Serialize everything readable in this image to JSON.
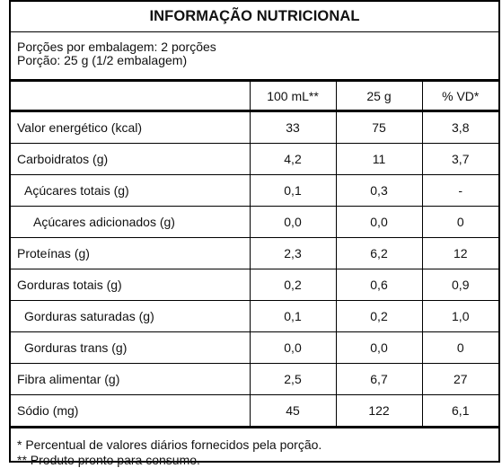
{
  "title": "INFORMAÇÃO NUTRICIONAL",
  "portion": {
    "line1": "Porções por embalagem: 2 porções",
    "line2": "Porção: 25 g (1/2 embalagem)"
  },
  "columns": [
    "",
    "100 mL**",
    "25 g",
    "% VD*"
  ],
  "rows": [
    {
      "label": "Valor energético (kcal)",
      "v100": "33",
      "vportion": "75",
      "vd": "3,8"
    },
    {
      "label": "Carboidratos (g)",
      "v100": "4,2",
      "vportion": "11",
      "vd": "3,7"
    },
    {
      "label": "Açúcares totais (g)",
      "v100": "0,1",
      "vportion": "0,3",
      "vd": "-"
    },
    {
      "label": "Açúcares adicionados (g)",
      "v100": "0,0",
      "vportion": "0,0",
      "vd": "0"
    },
    {
      "label": "Proteínas (g)",
      "v100": "2,3",
      "vportion": "6,2",
      "vd": "12"
    },
    {
      "label": "Gorduras totais (g)",
      "v100": "0,2",
      "vportion": "0,6",
      "vd": "0,9"
    },
    {
      "label": "Gorduras saturadas (g)",
      "v100": "0,1",
      "vportion": "0,2",
      "vd": "1,0"
    },
    {
      "label": "Gorduras trans (g)",
      "v100": "0,0",
      "vportion": "0,0",
      "vd": "0"
    },
    {
      "label": "Fibra alimentar (g)",
      "v100": "2,5",
      "vportion": "6,7",
      "vd": "27"
    },
    {
      "label": "Sódio (mg)",
      "v100": "45",
      "vportion": "122",
      "vd": "6,1"
    }
  ],
  "footnotes": [
    "* Percentual de valores diários fornecidos pela porção.",
    "** Produto pronto para consumo."
  ]
}
